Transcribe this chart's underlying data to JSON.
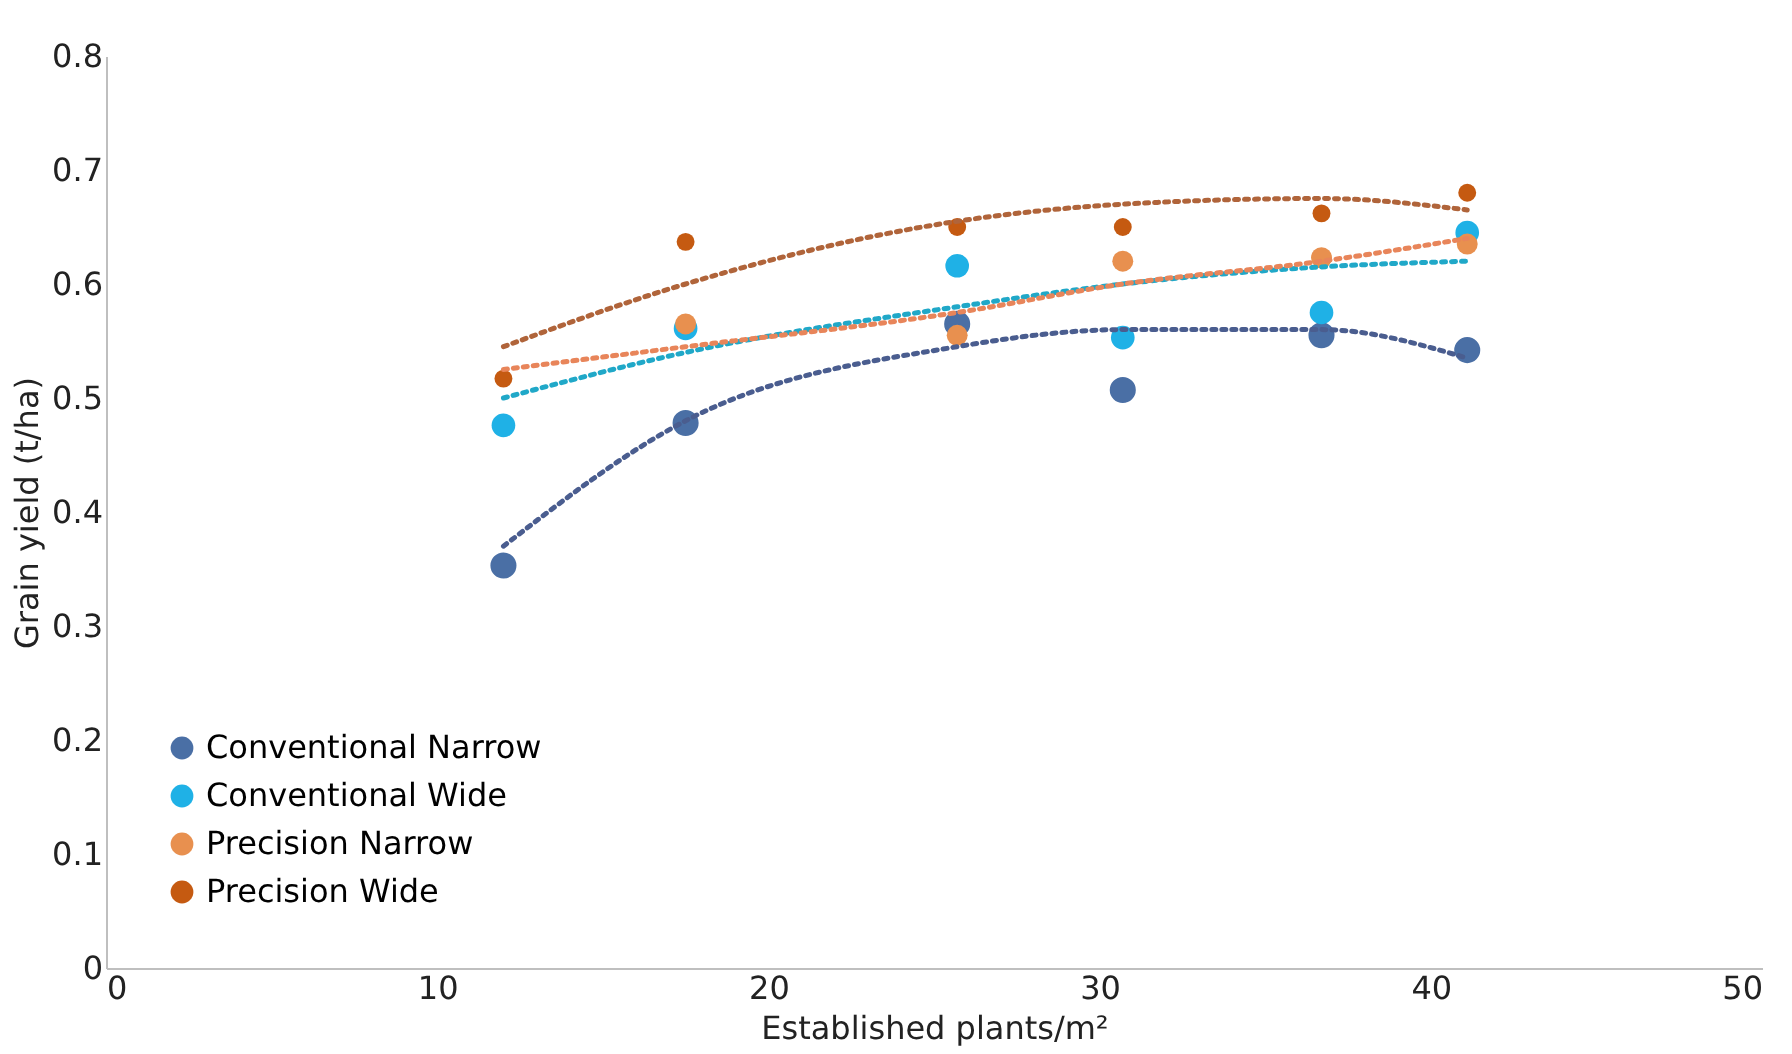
{
  "chart_data": {
    "type": "scatter",
    "xlabel": "Established plants/m²",
    "ylabel": "Grain yield (t/ha)",
    "xlim": [
      0,
      50
    ],
    "xticks": [
      0,
      10,
      20,
      30,
      40,
      50
    ],
    "ylim": [
      0,
      0.8
    ],
    "yticks": [
      0,
      0.1,
      0.2,
      0.3,
      0.4,
      0.5,
      0.6,
      0.7,
      0.8
    ],
    "x": [
      12.0,
      17.5,
      25.7,
      30.7,
      36.7,
      41.1
    ],
    "grid": false,
    "legend": "bottom left",
    "series": [
      {
        "name": "Conventional Narrow",
        "marker": "circle",
        "color": "#4a6fa5",
        "values": [
          0.353,
          0.478,
          0.565,
          0.507,
          0.555,
          0.542
        ]
      },
      {
        "name": "Conventional Wide",
        "marker": "circle",
        "color": "#1fb1e6",
        "values": [
          0.476,
          0.561,
          0.616,
          0.553,
          0.575,
          0.645
        ]
      },
      {
        "name": "Precision Narrow",
        "marker": "circle",
        "color": "#e8904f",
        "values": [
          null,
          0.565,
          0.555,
          0.62,
          0.623,
          0.635
        ]
      },
      {
        "name": "Precision Wide",
        "marker": "circle",
        "color": "#c55a11",
        "values": [
          0.517,
          0.637,
          0.65,
          0.65,
          0.662,
          0.68
        ]
      },
      {
        "type": "line",
        "line_style": "dotted",
        "color": "#4a5d8f",
        "x": [
          12.0,
          17.5,
          25.7,
          30.7,
          36.7,
          41.1
        ],
        "values": [
          0.37,
          0.48,
          0.545,
          0.56,
          0.56,
          0.535
        ]
      },
      {
        "type": "line",
        "line_style": "dotted",
        "color": "#20a8c8",
        "x": [
          12.0,
          17.5,
          25.7,
          30.7,
          36.7,
          41.1
        ],
        "values": [
          0.5,
          0.54,
          0.58,
          0.6,
          0.615,
          0.62
        ]
      },
      {
        "type": "line",
        "line_style": "dotted",
        "color": "#e8855a",
        "x": [
          12.0,
          17.5,
          25.7,
          30.7,
          36.7,
          41.1
        ],
        "values": [
          0.525,
          0.545,
          0.575,
          0.6,
          0.62,
          0.64
        ]
      },
      {
        "type": "line",
        "line_style": "dotted",
        "color": "#b0643a",
        "x": [
          12.0,
          17.5,
          25.7,
          30.7,
          36.7,
          41.1
        ],
        "values": [
          0.545,
          0.6,
          0.655,
          0.67,
          0.675,
          0.665
        ]
      }
    ]
  }
}
